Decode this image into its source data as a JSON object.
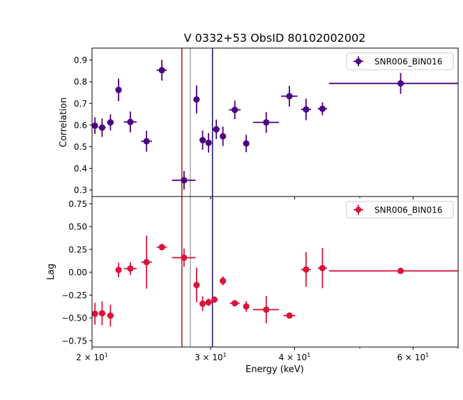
{
  "title": "V 0332+53 ObsID 80102002002",
  "xlabel": "Energy (keV)",
  "colors": {
    "top_series": "#4b0082",
    "bottom_series": "#dc143c",
    "line_red": "#a52a2a",
    "line_gray": "#a9a9a9",
    "line_blue": "#191970"
  },
  "chart_data": [
    {
      "type": "scatter",
      "panel": "top",
      "title": "V 0332+53 ObsID 80102002002",
      "xlabel": "Energy (keV)",
      "ylabel": "Correlation",
      "xscale": "log",
      "xlim": [
        20.0,
        70.0
      ],
      "ylim": [
        0.27,
        0.955
      ],
      "yticks": [
        0.3,
        0.4,
        0.5,
        0.6,
        0.7,
        0.8,
        0.9
      ],
      "ytick_labels": [
        "0.3",
        "0.4",
        "0.5",
        "0.6",
        "0.7",
        "0.8",
        "0.9"
      ],
      "xticks": [
        20,
        30,
        40,
        60
      ],
      "xtick_labels": [],
      "legend": {
        "label": "SNR006_BIN016",
        "position": "top-right"
      },
      "vlines": [
        {
          "x": 27.2,
          "color": "#a52a2a"
        },
        {
          "x": 28.0,
          "color": "#a9a9a9"
        },
        {
          "x": 30.2,
          "color": "#191970"
        }
      ],
      "points": [
        {
          "x": 20.2,
          "xerr": [
            0.2,
            0.2
          ],
          "y": 0.597,
          "yerr": 0.038
        },
        {
          "x": 20.7,
          "xerr": [
            0.25,
            0.25
          ],
          "y": 0.588,
          "yerr": 0.043
        },
        {
          "x": 21.3,
          "xerr": [
            0.25,
            0.25
          ],
          "y": 0.612,
          "yerr": 0.037
        },
        {
          "x": 21.9,
          "xerr": [
            0.15,
            0.15
          ],
          "y": 0.762,
          "yerr": 0.052
        },
        {
          "x": 22.8,
          "xerr": [
            0.5,
            0.5
          ],
          "y": 0.614,
          "yerr": 0.048
        },
        {
          "x": 24.1,
          "xerr": [
            0.45,
            0.45
          ],
          "y": 0.525,
          "yerr": 0.048
        },
        {
          "x": 25.4,
          "xerr": [
            0.45,
            0.45
          ],
          "y": 0.853,
          "yerr": 0.048
        },
        {
          "x": 27.4,
          "xerr": [
            1.1,
            1.1
          ],
          "y": 0.345,
          "yerr": 0.043
        },
        {
          "x": 28.6,
          "xerr": [
            0.1,
            0.1
          ],
          "y": 0.718,
          "yerr": 0.065
        },
        {
          "x": 29.2,
          "xerr": [
            0.25,
            0.25
          ],
          "y": 0.53,
          "yerr": 0.045
        },
        {
          "x": 29.8,
          "xerr": [
            0.25,
            0.25
          ],
          "y": 0.518,
          "yerr": 0.045
        },
        {
          "x": 30.6,
          "xerr": [
            0.35,
            0.35
          ],
          "y": 0.58,
          "yerr": 0.045
        },
        {
          "x": 31.3,
          "xerr": [
            0.25,
            0.25
          ],
          "y": 0.548,
          "yerr": 0.045
        },
        {
          "x": 32.6,
          "xerr": [
            0.65,
            0.65
          ],
          "y": 0.67,
          "yerr": 0.043
        },
        {
          "x": 33.9,
          "xerr": [
            0.1,
            0.1
          ],
          "y": 0.515,
          "yerr": 0.04
        },
        {
          "x": 36.3,
          "xerr": [
            1.6,
            1.6
          ],
          "y": 0.612,
          "yerr": 0.048
        },
        {
          "x": 39.3,
          "xerr": [
            1.1,
            1.1
          ],
          "y": 0.733,
          "yerr": 0.048
        },
        {
          "x": 41.6,
          "xerr": [
            0.7,
            0.7
          ],
          "y": 0.672,
          "yerr": 0.05
        },
        {
          "x": 44.0,
          "xerr": [
            0.7,
            0.7
          ],
          "y": 0.675,
          "yerr": 0.03
        },
        {
          "x": 57.5,
          "xerr": [
            12.5,
            12.5
          ],
          "y": 0.792,
          "yerr": 0.048
        }
      ]
    },
    {
      "type": "scatter",
      "panel": "bottom",
      "xlabel": "Energy (keV)",
      "ylabel": "Lag",
      "xscale": "log",
      "xlim": [
        20.0,
        70.0
      ],
      "ylim": [
        -0.82,
        0.83
      ],
      "yticks": [
        -0.75,
        -0.5,
        -0.25,
        0.0,
        0.25,
        0.5,
        0.75
      ],
      "ytick_labels": [
        "−0.75",
        "−0.50",
        "−0.25",
        "0.00",
        "0.25",
        "0.50",
        "0.75"
      ],
      "xticks": [
        20,
        30,
        40,
        60
      ],
      "xtick_labels": [
        "2 × 10",
        "3 × 10",
        "4 × 10",
        "6 × 10"
      ],
      "xtick_exponent": "1",
      "legend": {
        "label": "SNR006_BIN016",
        "position": "top-right"
      },
      "vlines": [
        {
          "x": 27.2,
          "color": "#a52a2a"
        },
        {
          "x": 28.0,
          "color": "#a9a9a9"
        },
        {
          "x": 30.2,
          "color": "#191970"
        }
      ],
      "points": [
        {
          "x": 20.2,
          "xerr": [
            0.2,
            0.2
          ],
          "y": -0.455,
          "yerr": 0.12
        },
        {
          "x": 20.7,
          "xerr": [
            0.25,
            0.25
          ],
          "y": -0.45,
          "yerr": 0.13
        },
        {
          "x": 21.3,
          "xerr": [
            0.25,
            0.25
          ],
          "y": -0.475,
          "yerr": 0.12
        },
        {
          "x": 21.9,
          "xerr": [
            0.15,
            0.15
          ],
          "y": 0.025,
          "yerr": 0.08
        },
        {
          "x": 22.8,
          "xerr": [
            0.5,
            0.5
          ],
          "y": 0.04,
          "yerr": 0.07
        },
        {
          "x": 24.1,
          "xerr": [
            0.45,
            0.45
          ],
          "y": 0.11,
          "yerr": 0.29
        },
        {
          "x": 25.4,
          "xerr": [
            0.45,
            0.45
          ],
          "y": 0.275,
          "yerr": 0.02
        },
        {
          "x": 27.4,
          "xerr": [
            1.1,
            1.1
          ],
          "y": 0.16,
          "yerr": 0.1
        },
        {
          "x": 28.6,
          "xerr": [
            0.1,
            0.1
          ],
          "y": -0.14,
          "yerr": 0.19
        },
        {
          "x": 29.2,
          "xerr": [
            0.25,
            0.25
          ],
          "y": -0.345,
          "yerr": 0.08
        },
        {
          "x": 29.8,
          "xerr": [
            0.25,
            0.25
          ],
          "y": -0.33,
          "yerr": 0.04
        },
        {
          "x": 30.4,
          "xerr": [
            0.2,
            0.2
          ],
          "y": -0.3,
          "yerr": 0.03
        },
        {
          "x": 31.3,
          "xerr": [
            0.1,
            0.1
          ],
          "y": -0.095,
          "yerr": 0.05
        },
        {
          "x": 32.6,
          "xerr": [
            0.55,
            0.55
          ],
          "y": -0.34,
          "yerr": 0.02
        },
        {
          "x": 33.9,
          "xerr": [
            0.1,
            0.1
          ],
          "y": -0.375,
          "yerr": 0.06
        },
        {
          "x": 36.3,
          "xerr": [
            1.6,
            1.6
          ],
          "y": -0.41,
          "yerr": 0.15
        },
        {
          "x": 39.3,
          "xerr": [
            0.8,
            0.8
          ],
          "y": -0.475,
          "yerr": 0.02
        },
        {
          "x": 41.6,
          "xerr": [
            0.7,
            0.7
          ],
          "y": 0.03,
          "yerr": 0.19
        },
        {
          "x": 44.0,
          "xerr": [
            0.7,
            0.7
          ],
          "y": 0.045,
          "yerr": 0.22
        },
        {
          "x": 57.5,
          "xerr": [
            12.5,
            12.5
          ],
          "y": 0.015,
          "yerr": 0.02
        }
      ]
    }
  ]
}
